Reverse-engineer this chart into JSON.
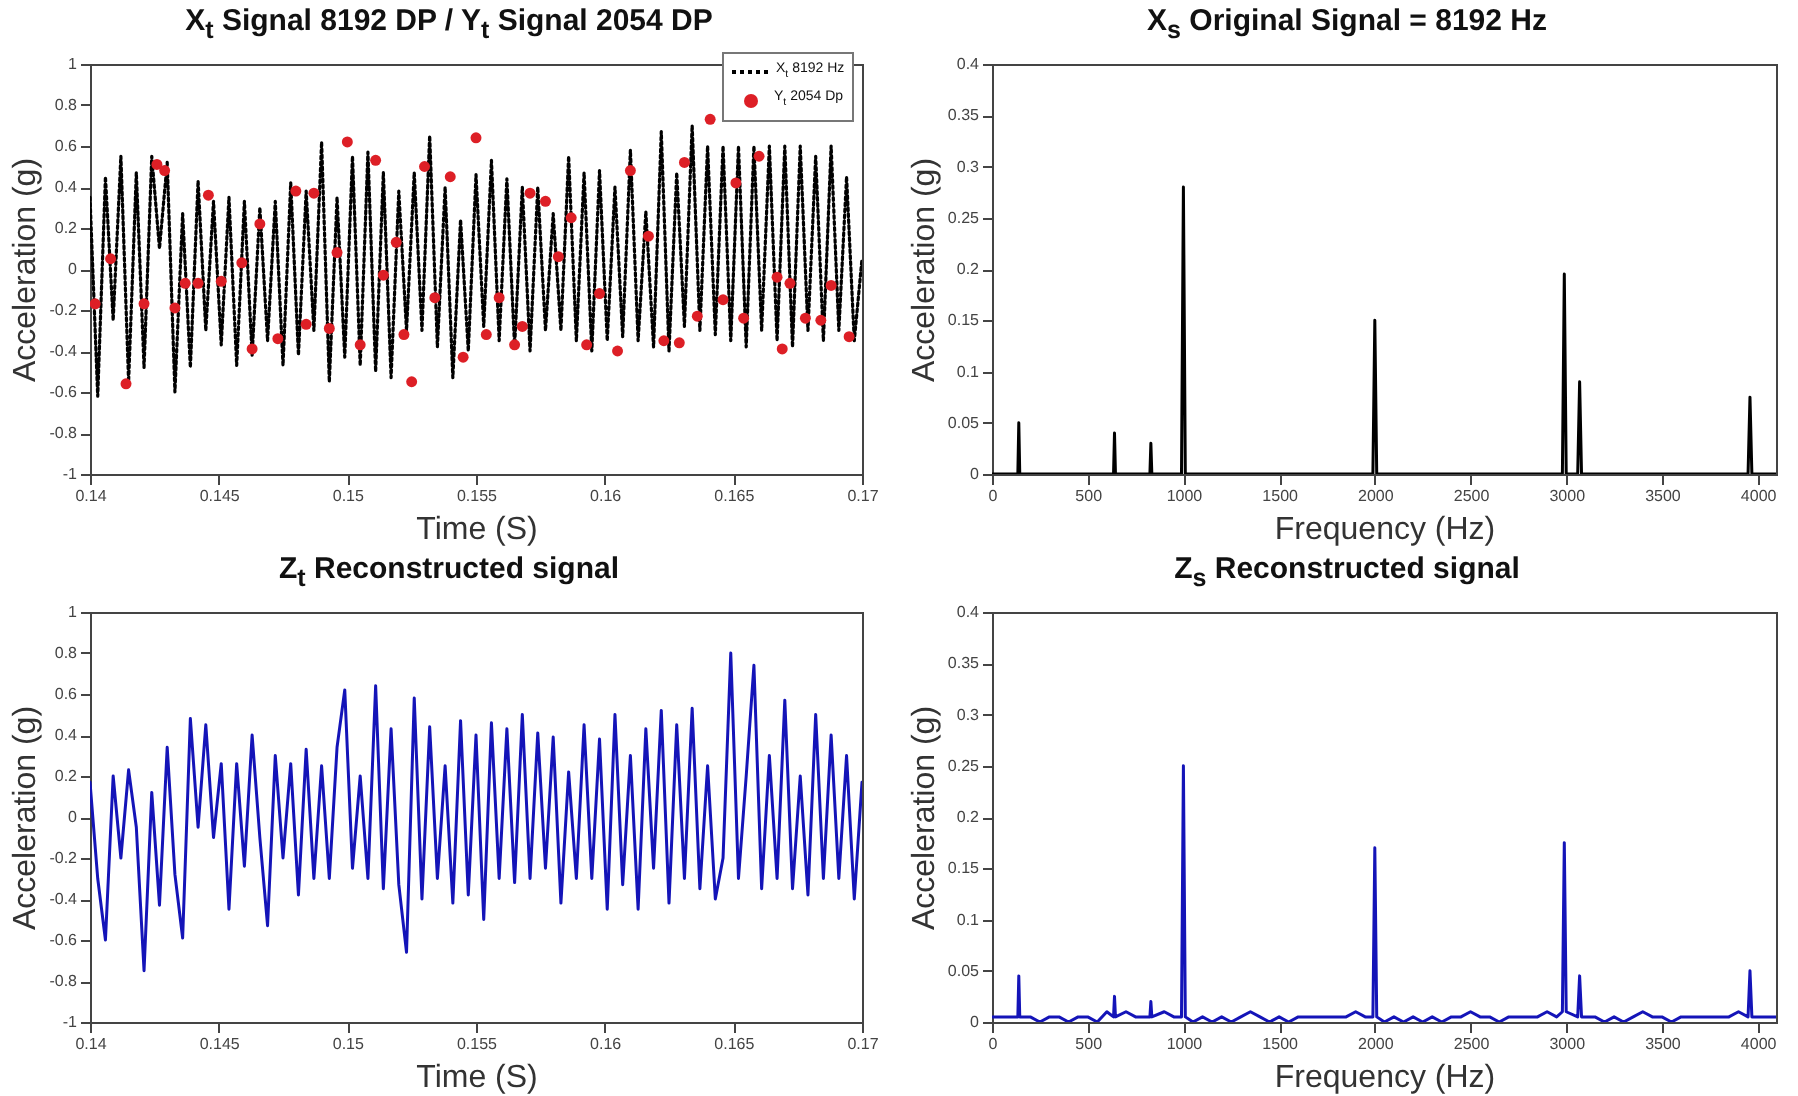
{
  "chart_data": [
    {
      "type": "line",
      "title": "X$_{t}$ Signal 8192 DP  / Y$_{t}$ Signal 2054 DP",
      "xlabel": "Time (S)",
      "ylabel": "Acceleration (g)",
      "xlim": [
        0.14,
        0.17
      ],
      "ylim": [
        -1,
        1
      ],
      "xticks": [
        0.14,
        0.145,
        0.15,
        0.155,
        0.16,
        0.165,
        0.17
      ],
      "yticks": [
        -1,
        -0.8,
        -0.6,
        -0.4,
        -0.2,
        0,
        0.2,
        0.4,
        0.6,
        0.8,
        1
      ],
      "legend": "top right",
      "x": [
        0.14,
        0.1403,
        0.1406,
        0.1409,
        0.1412,
        0.1415,
        0.1418,
        0.1421,
        0.1424,
        0.1427,
        0.143,
        0.1433,
        0.1436,
        0.1439,
        0.1442,
        0.1445,
        0.1448,
        0.1451,
        0.1454,
        0.1457,
        0.146,
        0.1463,
        0.1466,
        0.1469,
        0.1472,
        0.1475,
        0.1478,
        0.1481,
        0.1484,
        0.1487,
        0.149,
        0.1493,
        0.1496,
        0.1499,
        0.1502,
        0.1505,
        0.1508,
        0.1511,
        0.1514,
        0.1517,
        0.152,
        0.1523,
        0.1526,
        0.1529,
        0.1532,
        0.1535,
        0.1538,
        0.1541,
        0.1544,
        0.1547,
        0.155,
        0.1553,
        0.1556,
        0.1559,
        0.1562,
        0.1565,
        0.1568,
        0.1571,
        0.1574,
        0.1577,
        0.158,
        0.1583,
        0.1586,
        0.1589,
        0.1592,
        0.1595,
        0.1598,
        0.1601,
        0.1604,
        0.1607,
        0.161,
        0.1613,
        0.1616,
        0.1619,
        0.1622,
        0.1625,
        0.1628,
        0.1631,
        0.1634,
        0.1637,
        0.164,
        0.1643,
        0.1646,
        0.1649,
        0.1652,
        0.1655,
        0.1658,
        0.1661,
        0.1664,
        0.1667,
        0.167,
        0.1673,
        0.1676,
        0.1679,
        0.1682,
        0.1685,
        0.1688,
        0.1691,
        0.1694,
        0.1697,
        0.17
      ],
      "series": [
        {
          "name": "X$_{t}$ 8192 Hz",
          "color": "#000000",
          "line_style": "dotted",
          "values": [
            0.35,
            -0.62,
            0.45,
            -0.25,
            0.55,
            -0.55,
            0.47,
            -0.48,
            0.55,
            0.1,
            0.52,
            -0.6,
            0.27,
            -0.48,
            0.43,
            -0.3,
            0.33,
            -0.37,
            0.35,
            -0.47,
            0.33,
            -0.42,
            0.3,
            -0.35,
            0.33,
            -0.47,
            0.42,
            -0.42,
            0.38,
            -0.3,
            0.62,
            -0.55,
            0.35,
            -0.43,
            0.55,
            -0.47,
            0.57,
            -0.5,
            0.47,
            -0.53,
            0.38,
            -0.3,
            0.47,
            -0.3,
            0.65,
            -0.38,
            0.4,
            -0.53,
            0.24,
            -0.4,
            0.46,
            -0.28,
            0.53,
            -0.35,
            0.44,
            -0.38,
            0.4,
            -0.4,
            0.4,
            -0.3,
            0.27,
            -0.3,
            0.55,
            -0.35,
            0.47,
            -0.4,
            0.48,
            -0.35,
            0.4,
            -0.33,
            0.58,
            -0.35,
            0.28,
            -0.38,
            0.67,
            -0.4,
            0.47,
            -0.28,
            0.7,
            -0.3,
            0.6,
            -0.32,
            0.6,
            -0.35,
            0.6,
            -0.38,
            0.6,
            -0.3,
            0.6,
            -0.35,
            0.6,
            -0.38,
            0.6,
            -0.3,
            0.55,
            -0.35,
            0.6,
            -0.3,
            0.45,
            -0.35,
            0.05
          ]
        },
        {
          "name": "Y$_{t}$ 2054 Dp",
          "type": "scatter",
          "marker": "circle",
          "color": "#dd1f26",
          "x": [
            0.1402,
            0.1408,
            0.1414,
            0.1421,
            0.1426,
            0.1429,
            0.1433,
            0.1437,
            0.1442,
            0.1446,
            0.1451,
            0.1459,
            0.1463,
            0.1466,
            0.1473,
            0.148,
            0.1484,
            0.1487,
            0.1493,
            0.1496,
            0.15,
            0.1505,
            0.1511,
            0.1514,
            0.1519,
            0.1522,
            0.1525,
            0.153,
            0.1534,
            0.154,
            0.1545,
            0.155,
            0.1554,
            0.1559,
            0.1565,
            0.1568,
            0.1571,
            0.1577,
            0.1582,
            0.1587,
            0.1593,
            0.1598,
            0.1605,
            0.161,
            0.1617,
            0.1623,
            0.1629,
            0.1631,
            0.1636,
            0.1641,
            0.1646,
            0.1651,
            0.1654,
            0.166,
            0.1667,
            0.1669,
            0.1672,
            0.1678,
            0.1684,
            0.1688,
            0.1695
          ],
          "values": [
            -0.17,
            0.05,
            -0.56,
            -0.17,
            0.51,
            0.48,
            -0.19,
            -0.07,
            -0.07,
            0.36,
            -0.06,
            0.03,
            -0.39,
            0.22,
            -0.34,
            0.38,
            -0.27,
            0.37,
            -0.29,
            0.08,
            0.62,
            -0.37,
            0.53,
            -0.03,
            0.13,
            -0.32,
            -0.55,
            0.5,
            -0.14,
            0.45,
            -0.43,
            0.64,
            -0.32,
            -0.14,
            -0.37,
            -0.28,
            0.37,
            0.33,
            0.06,
            0.25,
            -0.37,
            -0.12,
            -0.4,
            0.48,
            0.16,
            -0.35,
            -0.36,
            0.52,
            -0.23,
            0.73,
            -0.15,
            0.42,
            -0.24,
            0.55,
            -0.04,
            -0.39,
            -0.07,
            -0.24,
            -0.25,
            -0.08,
            -0.33
          ]
        }
      ]
    },
    {
      "type": "line",
      "title": "X$_{s}$ Original Signal = 8192 Hz",
      "xlabel": "Frequency (Hz)",
      "ylabel": "Acceleration (g)",
      "xlim": [
        0,
        4096
      ],
      "ylim": [
        0,
        0.4
      ],
      "xticks": [
        0,
        500,
        1000,
        1500,
        2000,
        2500,
        3000,
        3500,
        4000
      ],
      "yticks": [
        0,
        0.05,
        0.1,
        0.15,
        0.2,
        0.25,
        0.3,
        0.35,
        0.4
      ],
      "series": [
        {
          "color": "#000000",
          "x": [
            0,
            135,
            140,
            145,
            635,
            640,
            645,
            825,
            830,
            835,
            990,
            1000,
            1010,
            1990,
            2000,
            2010,
            2980,
            2990,
            3000,
            3060,
            3070,
            3080,
            3950,
            3960,
            3970,
            4096
          ],
          "values": [
            0,
            0,
            0.05,
            0,
            0,
            0.04,
            0,
            0,
            0.03,
            0,
            0,
            0.28,
            0,
            0,
            0.15,
            0,
            0,
            0.195,
            0,
            0,
            0.09,
            0,
            0,
            0.075,
            0,
            0
          ]
        }
      ]
    },
    {
      "type": "line",
      "title": "Z$_{t}$ Reconstructed signal",
      "xlabel": "Time (S)",
      "ylabel": "Acceleration (g)",
      "xlim": [
        0.14,
        0.17
      ],
      "ylim": [
        -1,
        1
      ],
      "xticks": [
        0.14,
        0.145,
        0.15,
        0.155,
        0.16,
        0.165,
        0.17
      ],
      "yticks": [
        -1,
        -0.8,
        -0.6,
        -0.4,
        -0.2,
        0,
        0.2,
        0.4,
        0.6,
        0.8,
        1
      ],
      "x": [
        0.14,
        0.1403,
        0.1406,
        0.1409,
        0.1412,
        0.1415,
        0.1418,
        0.1421,
        0.1424,
        0.1427,
        0.143,
        0.1433,
        0.1436,
        0.1439,
        0.1442,
        0.1445,
        0.1448,
        0.1451,
        0.1454,
        0.1457,
        0.146,
        0.1463,
        0.1466,
        0.1469,
        0.1472,
        0.1475,
        0.1478,
        0.1481,
        0.1484,
        0.1487,
        0.149,
        0.1493,
        0.1496,
        0.1499,
        0.1502,
        0.1505,
        0.1508,
        0.1511,
        0.1514,
        0.1517,
        0.152,
        0.1523,
        0.1526,
        0.1529,
        0.1532,
        0.1535,
        0.1538,
        0.1541,
        0.1544,
        0.1547,
        0.155,
        0.1553,
        0.1556,
        0.1559,
        0.1562,
        0.1565,
        0.1568,
        0.1571,
        0.1574,
        0.1577,
        0.158,
        0.1583,
        0.1586,
        0.1589,
        0.1592,
        0.1595,
        0.1598,
        0.1601,
        0.1604,
        0.1607,
        0.161,
        0.1613,
        0.1616,
        0.1619,
        0.1622,
        0.1625,
        0.1628,
        0.1631,
        0.1634,
        0.1637,
        0.164,
        0.1643,
        0.1646,
        0.1649,
        0.1652,
        0.1655,
        0.1658,
        0.1661,
        0.1664,
        0.1667,
        0.167,
        0.1673,
        0.1676,
        0.1679,
        0.1682,
        0.1685,
        0.1688,
        0.1691,
        0.1694,
        0.1697,
        0.17
      ],
      "series": [
        {
          "color": "#1414b8",
          "values": [
            0.17,
            -0.3,
            -0.6,
            0.2,
            -0.2,
            0.23,
            -0.05,
            -0.75,
            0.12,
            -0.43,
            0.34,
            -0.28,
            -0.59,
            0.48,
            -0.05,
            0.45,
            -0.1,
            0.26,
            -0.45,
            0.26,
            -0.24,
            0.4,
            -0.1,
            -0.53,
            0.3,
            -0.2,
            0.26,
            -0.38,
            0.33,
            -0.3,
            0.25,
            -0.3,
            0.34,
            0.62,
            -0.25,
            0.2,
            -0.3,
            0.64,
            -0.35,
            0.43,
            -0.33,
            -0.66,
            0.58,
            -0.4,
            0.44,
            -0.3,
            0.25,
            -0.42,
            0.47,
            -0.38,
            0.4,
            -0.5,
            0.46,
            -0.3,
            0.43,
            -0.32,
            0.5,
            -0.3,
            0.41,
            -0.25,
            0.39,
            -0.42,
            0.22,
            -0.3,
            0.45,
            -0.3,
            0.38,
            -0.45,
            0.5,
            -0.33,
            0.3,
            -0.45,
            0.43,
            -0.25,
            0.52,
            -0.42,
            0.45,
            -0.3,
            0.53,
            -0.35,
            0.25,
            -0.4,
            -0.2,
            0.8,
            -0.3,
            0.2,
            0.74,
            -0.35,
            0.3,
            -0.3,
            0.57,
            -0.35,
            0.2,
            -0.38,
            0.5,
            -0.3,
            0.4,
            -0.3,
            0.3,
            -0.4,
            0.17
          ]
        }
      ]
    },
    {
      "type": "line",
      "title": "Z$_{s}$ Reconstructed signal",
      "xlabel": "Frequency (Hz)",
      "ylabel": "Acceleration (g)",
      "xlim": [
        0,
        4096
      ],
      "ylim": [
        0,
        0.4
      ],
      "xticks": [
        0,
        500,
        1000,
        1500,
        2000,
        2500,
        3000,
        3500,
        4000
      ],
      "yticks": [
        0,
        0.05,
        0.1,
        0.15,
        0.2,
        0.25,
        0.3,
        0.35,
        0.4
      ],
      "series": [
        {
          "color": "#1414b8",
          "x": [
            0,
            50,
            100,
            135,
            140,
            145,
            200,
            250,
            300,
            350,
            400,
            450,
            500,
            550,
            600,
            635,
            640,
            645,
            700,
            750,
            800,
            825,
            830,
            835,
            900,
            950,
            990,
            1000,
            1010,
            1050,
            1100,
            1150,
            1200,
            1250,
            1300,
            1350,
            1400,
            1450,
            1500,
            1550,
            1600,
            1650,
            1700,
            1750,
            1800,
            1850,
            1900,
            1950,
            1990,
            2000,
            2010,
            2050,
            2100,
            2150,
            2200,
            2250,
            2300,
            2350,
            2400,
            2450,
            2500,
            2550,
            2600,
            2650,
            2700,
            2750,
            2800,
            2850,
            2900,
            2950,
            2980,
            2990,
            3000,
            3060,
            3070,
            3080,
            3150,
            3200,
            3250,
            3300,
            3350,
            3400,
            3450,
            3500,
            3550,
            3600,
            3650,
            3700,
            3750,
            3800,
            3850,
            3900,
            3950,
            3960,
            3970,
            4050,
            4096
          ],
          "values": [
            0.005,
            0.005,
            0.005,
            0.005,
            0.045,
            0.005,
            0.005,
            0,
            0.005,
            0.005,
            0,
            0.005,
            0.005,
            0,
            0.01,
            0.005,
            0.025,
            0.005,
            0.01,
            0.005,
            0.005,
            0.005,
            0.02,
            0.005,
            0.01,
            0.005,
            0.005,
            0.25,
            0.005,
            0,
            0.005,
            0,
            0.005,
            0,
            0.005,
            0.01,
            0.005,
            0,
            0.005,
            0,
            0.005,
            0.005,
            0.005,
            0.005,
            0.005,
            0.005,
            0.01,
            0.005,
            0.005,
            0.17,
            0.005,
            0,
            0.005,
            0,
            0.005,
            0,
            0.005,
            0,
            0.005,
            0.005,
            0.01,
            0.005,
            0.005,
            0,
            0.005,
            0.005,
            0.005,
            0.005,
            0.01,
            0.005,
            0.01,
            0.175,
            0.01,
            0.005,
            0.045,
            0.005,
            0.005,
            0,
            0.005,
            0,
            0.005,
            0.01,
            0.005,
            0.005,
            0,
            0.005,
            0.005,
            0.005,
            0.005,
            0.005,
            0.005,
            0.01,
            0.005,
            0.05,
            0.005,
            0.005,
            0.005
          ]
        }
      ]
    }
  ]
}
